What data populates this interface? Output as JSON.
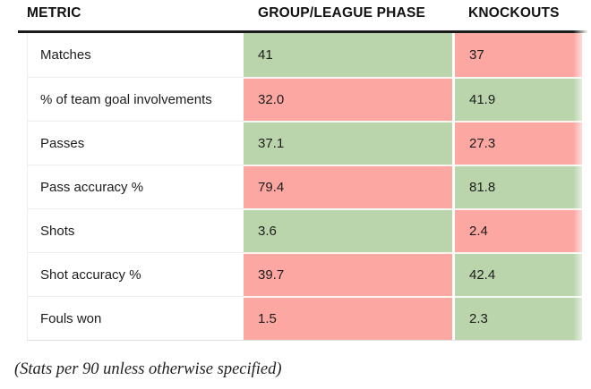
{
  "chart_data": {
    "type": "table",
    "columns": [
      "METRIC",
      "GROUP/LEAGUE PHASE",
      "KNOCKOUTS"
    ],
    "rows": [
      {
        "metric": "Matches",
        "group_league_phase": 41,
        "knockouts": 37,
        "group_highlight": "green",
        "knockouts_highlight": "red"
      },
      {
        "metric": "% of team goal involvements",
        "group_league_phase": 32.0,
        "knockouts": 41.9,
        "group_highlight": "red",
        "knockouts_highlight": "green"
      },
      {
        "metric": "Passes",
        "group_league_phase": 37.1,
        "knockouts": 27.3,
        "group_highlight": "green",
        "knockouts_highlight": "red"
      },
      {
        "metric": "Pass accuracy %",
        "group_league_phase": 79.4,
        "knockouts": 81.8,
        "group_highlight": "red",
        "knockouts_highlight": "green"
      },
      {
        "metric": "Shots",
        "group_league_phase": 3.6,
        "knockouts": 2.4,
        "group_highlight": "green",
        "knockouts_highlight": "red"
      },
      {
        "metric": "Shot accuracy %",
        "group_league_phase": 39.7,
        "knockouts": 42.4,
        "group_highlight": "red",
        "knockouts_highlight": "green"
      },
      {
        "metric": "Fouls won",
        "group_league_phase": 1.5,
        "knockouts": 2.3,
        "group_highlight": "red",
        "knockouts_highlight": "green"
      }
    ],
    "note": "(Stats per 90 unless otherwise specified)",
    "highlight_colors": {
      "green": "#bad5ab",
      "red": "#fda7a2"
    }
  },
  "table": {
    "columns": [
      {
        "label": "METRIC"
      },
      {
        "label": "GROUP/LEAGUE PHASE"
      },
      {
        "label": "KNOCKOUTS"
      }
    ],
    "rows": [
      {
        "metric": "Matches",
        "group": "41",
        "group_color": "green",
        "knockout": "37",
        "knockout_color": "red"
      },
      {
        "metric": "% of team goal involvements",
        "group": "32.0",
        "group_color": "red",
        "knockout": "41.9",
        "knockout_color": "green"
      },
      {
        "metric": "Passes",
        "group": "37.1",
        "group_color": "green",
        "knockout": "27.3",
        "knockout_color": "red"
      },
      {
        "metric": "Pass accuracy %",
        "group": "79.4",
        "group_color": "red",
        "knockout": "81.8",
        "knockout_color": "green"
      },
      {
        "metric": "Shots",
        "group": "3.6",
        "group_color": "green",
        "knockout": "2.4",
        "knockout_color": "red"
      },
      {
        "metric": "Shot accuracy %",
        "group": "39.7",
        "group_color": "red",
        "knockout": "42.4",
        "knockout_color": "green"
      },
      {
        "metric": "Fouls won",
        "group": "1.5",
        "group_color": "red",
        "knockout": "2.3",
        "knockout_color": "green"
      }
    ]
  },
  "footer": {
    "note": "(Stats per 90 unless otherwise specified)"
  },
  "colors": {
    "green": "#bad5ab",
    "red": "#fda7a2",
    "header_border": "#1a1a1a"
  }
}
